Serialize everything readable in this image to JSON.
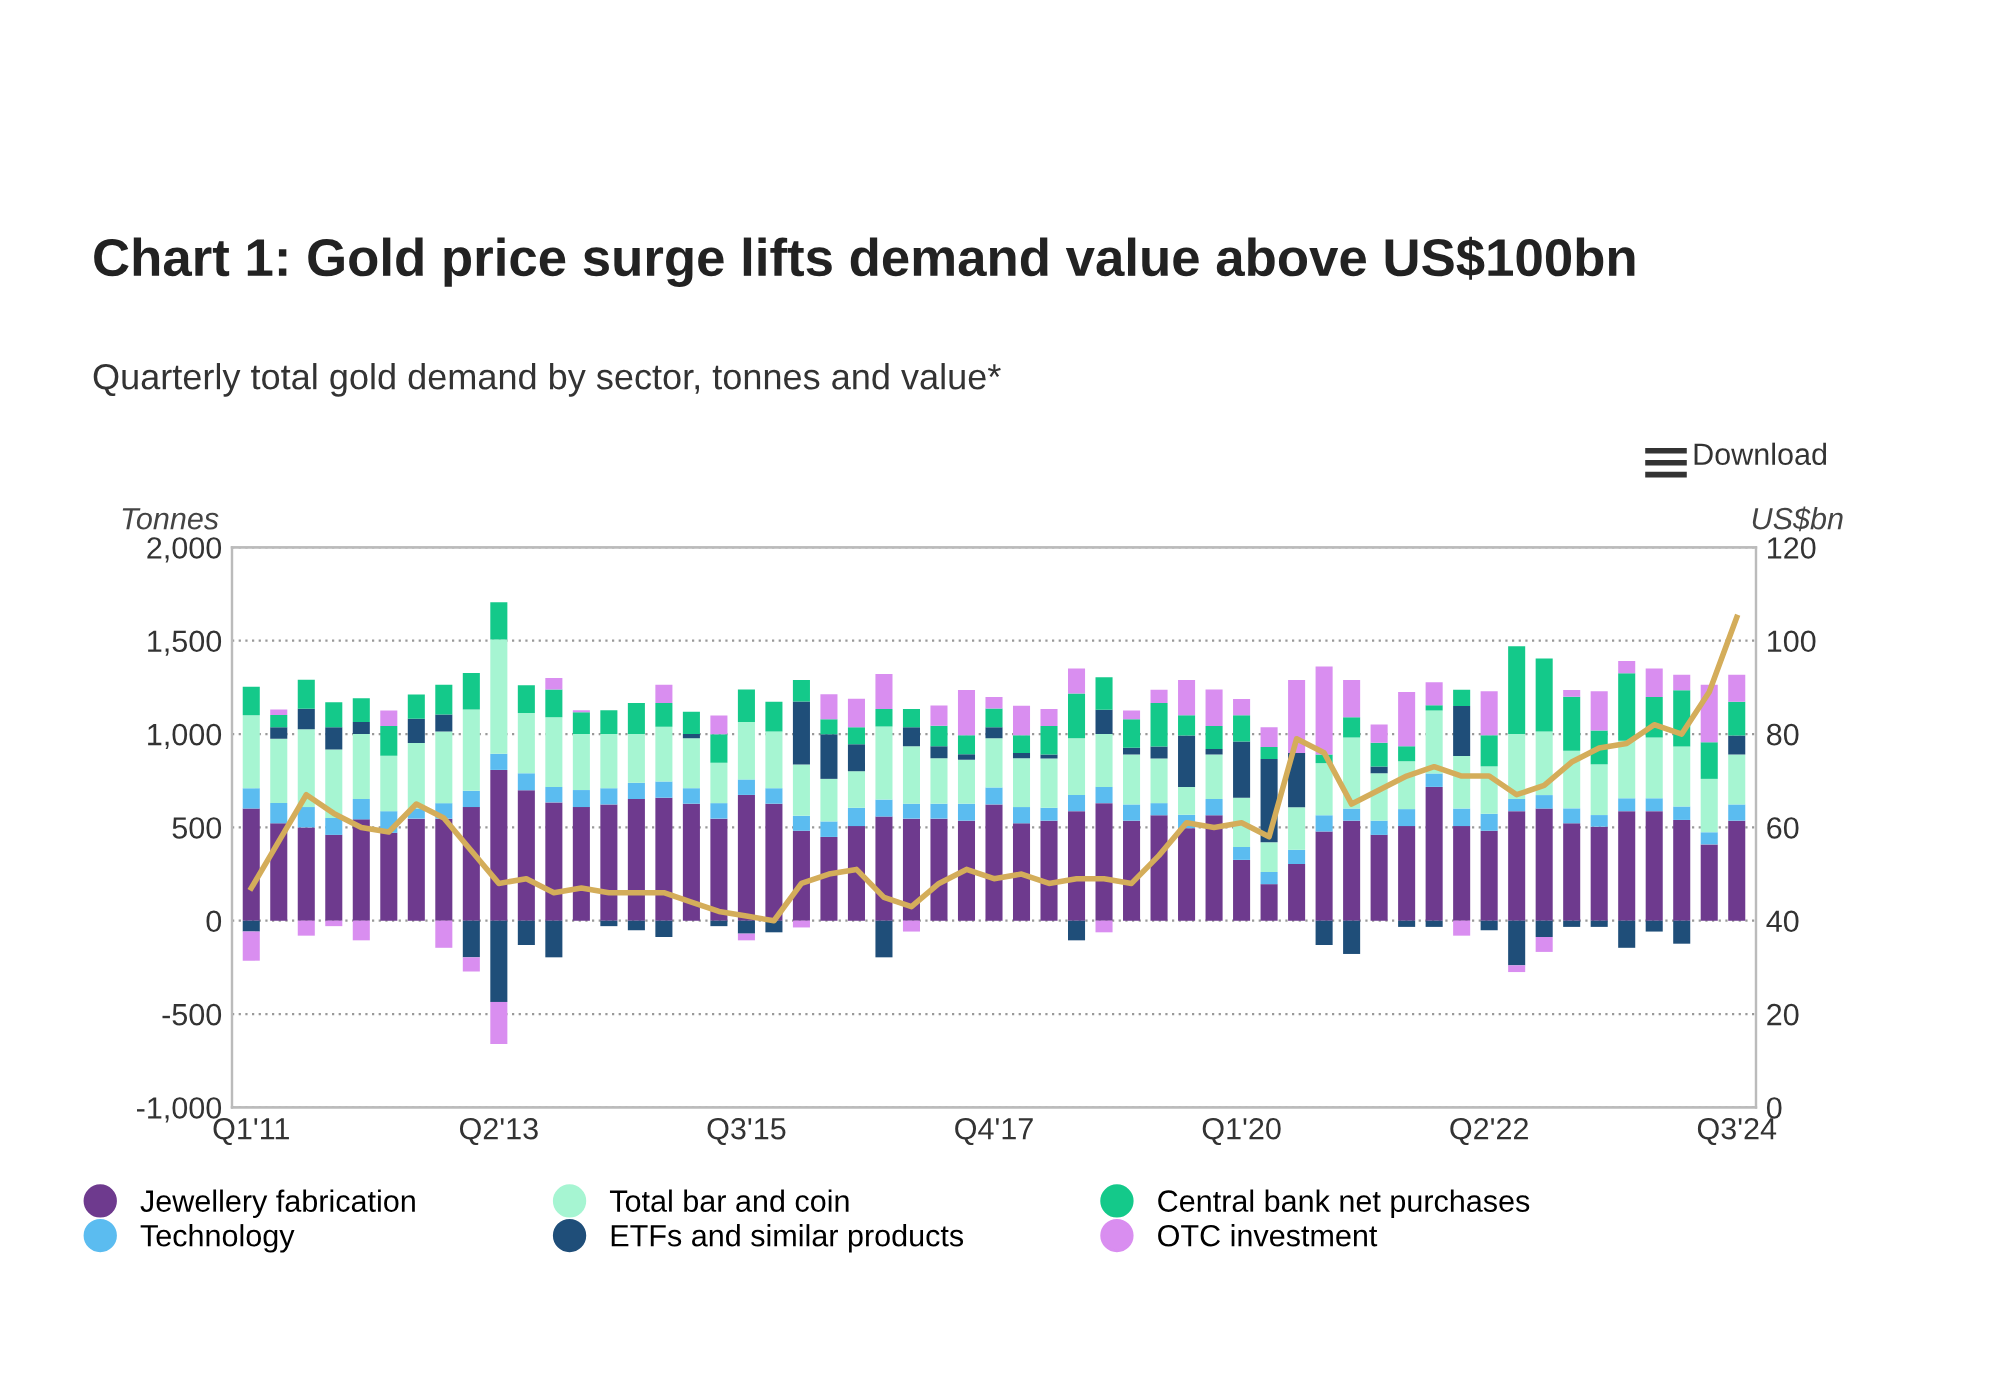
{
  "chart_data": {
    "type": "bar",
    "stacked": true,
    "title": "Chart 1: Gold price surge lifts demand value above US$100bn",
    "subtitle": "Quarterly total gold demand by sector, tonnes and value*",
    "ylabel": "Tonnes",
    "y2label": "US$bn",
    "annotations": [
      "Download"
    ],
    "categories": [
      "Q1'11",
      null,
      null,
      null,
      null,
      null,
      null,
      null,
      null,
      "Q2'13",
      null,
      null,
      null,
      null,
      null,
      null,
      null,
      null,
      "Q3'15",
      null,
      null,
      null,
      null,
      null,
      null,
      null,
      null,
      "Q4'17",
      null,
      null,
      null,
      null,
      null,
      null,
      null,
      null,
      "Q1'20",
      null,
      null,
      null,
      null,
      null,
      null,
      null,
      null,
      "Q2'22",
      null,
      null,
      null,
      null,
      null,
      null,
      null,
      null,
      "Q3'24"
    ],
    "series": [
      {
        "name": "Jewellery fabrication",
        "color": "#6e3a8e",
        "values": [
          601,
          522,
          500,
          460,
          543,
          471,
          547,
          547,
          609,
          808,
          699,
          634,
          609,
          623,
          652,
          659,
          627,
          547,
          674,
          627,
          482,
          449,
          507,
          558,
          547,
          547,
          536,
          623,
          522,
          536,
          587,
          630,
          536,
          565,
          496,
          565,
          326,
          196,
          304,
          478,
          536,
          460,
          507,
          717,
          507,
          482,
          587,
          601,
          522,
          504,
          587,
          587,
          540,
          409,
          536
        ]
      },
      {
        "name": "Technology",
        "color": "#5bbcf0",
        "values": [
          109,
          109,
          109,
          91,
          109,
          116,
          54,
          83,
          87,
          87,
          91,
          83,
          91,
          87,
          87,
          87,
          83,
          83,
          83,
          83,
          80,
          83,
          98,
          91,
          80,
          80,
          91,
          91,
          87,
          69,
          87,
          87,
          87,
          65,
          72,
          87,
          69,
          65,
          76,
          87,
          65,
          76,
          91,
          72,
          94,
          91,
          65,
          72,
          80,
          62,
          69,
          69,
          72,
          65,
          87
        ]
      },
      {
        "name": "Total bar and coin",
        "color": "#a6f5d2",
        "values": [
          391,
          344,
          417,
          366,
          348,
          297,
          351,
          384,
          435,
          612,
          323,
          373,
          301,
          290,
          261,
          293,
          268,
          217,
          308,
          304,
          275,
          228,
          196,
          391,
          308,
          243,
          236,
          264,
          261,
          264,
          304,
          283,
          268,
          239,
          149,
          239,
          264,
          159,
          228,
          279,
          380,
          254,
          257,
          337,
          282,
          254,
          348,
          341,
          308,
          272,
          308,
          326,
          322,
          286,
          268
        ]
      },
      {
        "name": "ETFs and similar products",
        "color": "#1f4e79",
        "values": [
          -58,
          62,
          109,
          120,
          65,
          0,
          130,
          91,
          -196,
          -435,
          -130,
          -196,
          0,
          -29,
          -51,
          -87,
          22,
          -29,
          -69,
          -62,
          337,
          239,
          145,
          -196,
          101,
          65,
          29,
          58,
          29,
          22,
          -105,
          130,
          36,
          65,
          275,
          29,
          301,
          446,
          290,
          -130,
          -178,
          36,
          -33,
          -33,
          268,
          -51,
          -239,
          -87,
          -33,
          -33,
          -145,
          -58,
          -123,
          0,
          101
        ]
      },
      {
        "name": "Central bank net purchases",
        "color": "#14c98a",
        "values": [
          152,
          65,
          156,
          134,
          127,
          159,
          130,
          159,
          196,
          199,
          149,
          149,
          116,
          127,
          167,
          127,
          120,
          152,
          174,
          159,
          116,
          80,
          91,
          94,
          98,
          109,
          101,
          101,
          94,
          152,
          239,
          174,
          152,
          232,
          109,
          123,
          141,
          65,
          0,
          47,
          109,
          127,
          80,
          29,
          87,
          167,
          471,
          391,
          290,
          181,
          362,
          217,
          301,
          196,
          181
        ]
      },
      {
        "name": "OTC investment",
        "color": "#d98ef0",
        "values": [
          -156,
          29,
          -80,
          -29,
          -105,
          83,
          0,
          -145,
          -76,
          -225,
          0,
          62,
          11,
          0,
          0,
          98,
          0,
          101,
          -36,
          0,
          -36,
          134,
          152,
          188,
          -58,
          109,
          243,
          62,
          159,
          91,
          134,
          -62,
          47,
          72,
          188,
          196,
          87,
          105,
          391,
          471,
          199,
          98,
          290,
          123,
          -80,
          236,
          -36,
          -80,
          36,
          210,
          65,
          152,
          83,
          308,
          145
        ]
      },
      {
        "type": "line",
        "axis": "y2",
        "color": "#d4ad5a",
        "values": [
          47,
          57,
          67,
          63,
          60,
          59,
          65,
          62,
          55,
          48,
          49,
          46,
          47,
          46,
          46,
          46,
          44,
          42,
          41,
          40,
          48,
          50,
          51,
          45,
          43,
          48,
          51,
          49,
          50,
          48,
          49,
          49,
          48,
          54,
          61,
          60,
          61,
          58,
          79,
          76,
          65,
          68,
          71,
          73,
          71,
          71,
          67,
          69,
          74,
          77,
          78,
          82,
          80,
          89,
          105
        ]
      }
    ],
    "ylim": [
      -1000,
      2000
    ],
    "yticks": [
      {
        "value": -1000,
        "label": "-1,000"
      },
      -500,
      0,
      500,
      {
        "value": 1000,
        "label": "1,000"
      },
      {
        "value": 1500,
        "label": "1,500"
      },
      {
        "value": 2000,
        "label": "2,000"
      }
    ],
    "y2lim": [
      0,
      120
    ],
    "y2ticks": [
      0,
      20,
      40,
      60,
      80,
      100,
      120
    ],
    "grid": "y",
    "legend": "bottom"
  }
}
